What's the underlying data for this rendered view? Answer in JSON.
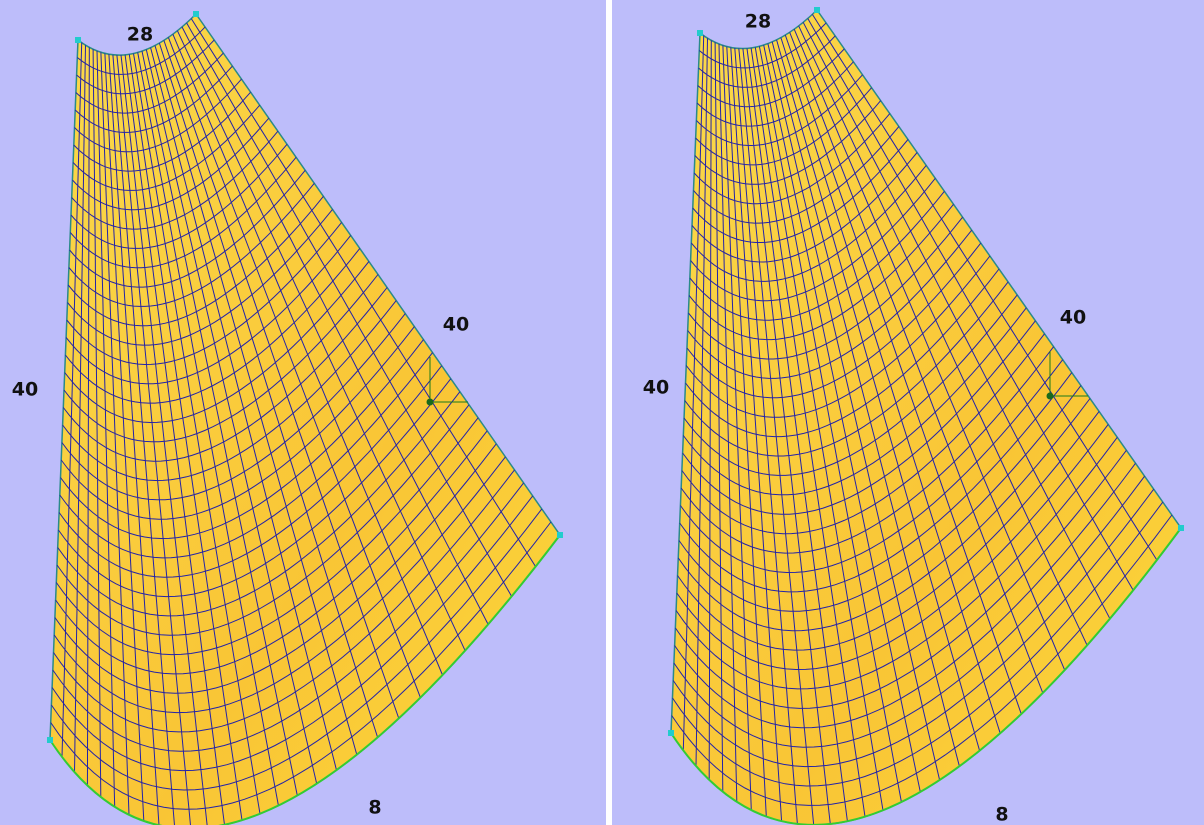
{
  "panels": [
    {
      "edge_labels": {
        "top": 28,
        "left": 40,
        "right": 40,
        "bottom": 8
      }
    },
    {
      "edge_labels": {
        "top": 28,
        "left": 40,
        "right": 40,
        "bottom": 8
      }
    }
  ]
}
